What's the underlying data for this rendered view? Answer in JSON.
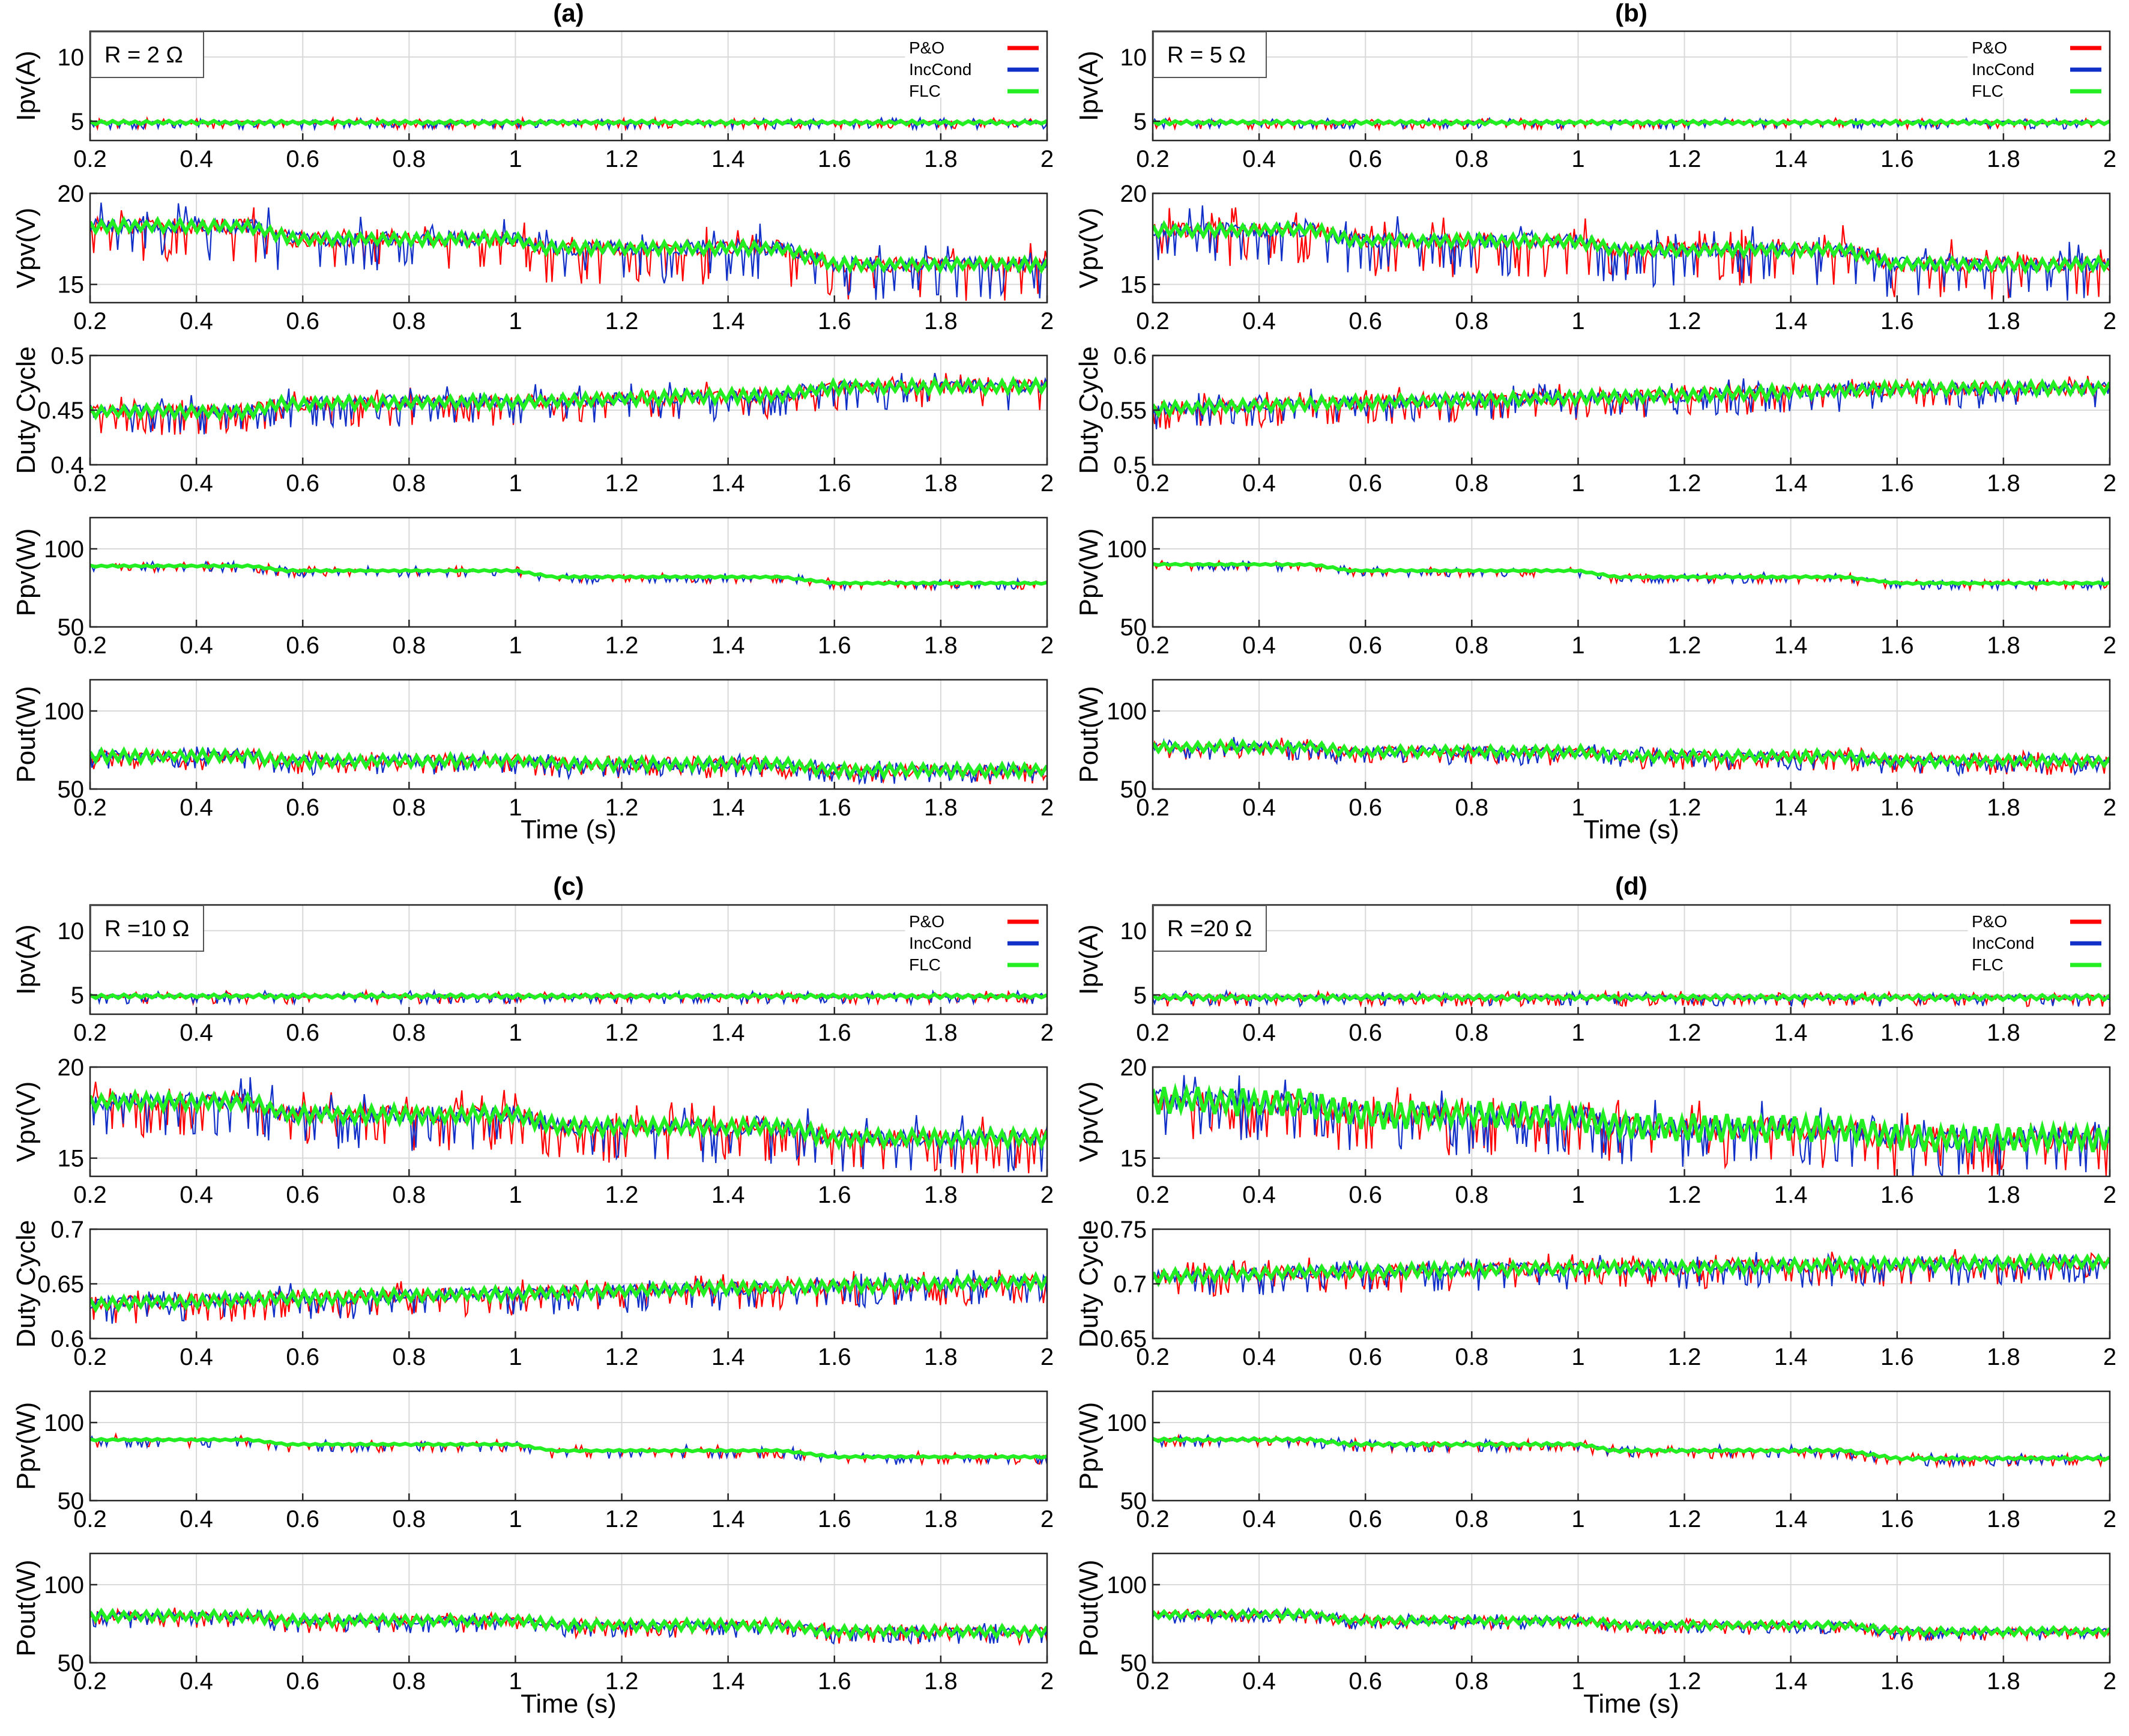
{
  "colors": {
    "po": "#ff0000",
    "inc": "#1030c8",
    "flc": "#22ee22",
    "grid": "#d9d9d9",
    "axis": "#262626"
  },
  "legend": [
    {
      "key": "po",
      "label": "P&O"
    },
    {
      "key": "inc",
      "label": "IncCond"
    },
    {
      "key": "flc",
      "label": "FLC"
    }
  ],
  "xlabel": "Time (s)",
  "chart_data": [
    {
      "type": "line",
      "panel": "(a)",
      "title": "(a)",
      "annotation": "R = 2 Ω",
      "x_ticks": [
        "0.2",
        "0.4",
        "0.6",
        "0.8",
        "1",
        "1.2",
        "1.4",
        "1.6",
        "1.8",
        "2"
      ],
      "xlim": [
        0.2,
        2
      ],
      "subplots": [
        {
          "ylabel": "Ipv(A)",
          "ylim": [
            3.5,
            12
          ],
          "yticks": [
            5,
            10
          ],
          "base": [
            [
              0.2,
              4.9
            ],
            [
              2,
              4.9
            ]
          ],
          "noise": 0.2,
          "spike": 0.5,
          "flc_band": 0.15
        },
        {
          "ylabel": "Vpv(V)",
          "ylim": [
            14,
            20
          ],
          "yticks": [
            15,
            20
          ],
          "base": [
            [
              0.2,
              18.2
            ],
            [
              0.5,
              18.2
            ],
            [
              0.58,
              17.5
            ],
            [
              1.0,
              17.5
            ],
            [
              1.05,
              17.0
            ],
            [
              1.5,
              17.0
            ],
            [
              1.6,
              16.1
            ],
            [
              2,
              16.1
            ]
          ],
          "noise": 0.8,
          "spike": 2.0,
          "flc_band": 0.35
        },
        {
          "ylabel": "Duty Cycle",
          "ylim": [
            0.4,
            0.5
          ],
          "yticks": [
            0.4,
            0.45,
            0.5
          ],
          "base": [
            [
              0.2,
              0.449
            ],
            [
              0.5,
              0.449
            ],
            [
              0.55,
              0.456
            ],
            [
              1.0,
              0.458
            ],
            [
              1.5,
              0.464
            ],
            [
              1.6,
              0.471
            ],
            [
              2,
              0.472
            ]
          ],
          "noise": 0.012,
          "spike": 0.022,
          "flc_band": 0.006
        },
        {
          "ylabel": "Ppv(W)",
          "ylim": [
            50,
            120
          ],
          "yticks": [
            50,
            100
          ],
          "base": [
            [
              0.2,
              89
            ],
            [
              0.5,
              89
            ],
            [
              0.57,
              86
            ],
            [
              1.0,
              86
            ],
            [
              1.07,
              82
            ],
            [
              1.5,
              82
            ],
            [
              1.6,
              78
            ],
            [
              2,
              78
            ]
          ],
          "noise": 1.0,
          "spike": 4.0,
          "flc_band": 0.6
        },
        {
          "ylabel": "Pout(W)",
          "ylim": [
            50,
            120
          ],
          "yticks": [
            50,
            100
          ],
          "base": [
            [
              0.2,
              71
            ],
            [
              0.5,
              71
            ],
            [
              0.57,
              68
            ],
            [
              1.0,
              68
            ],
            [
              1.1,
              66
            ],
            [
              1.5,
              66
            ],
            [
              1.6,
              62
            ],
            [
              2,
              62
            ]
          ],
          "noise": 7.0,
          "spike": 9.0,
          "flc_band": 4.0
        }
      ]
    },
    {
      "type": "line",
      "panel": "(b)",
      "title": "(b)",
      "annotation": "R = 5 Ω",
      "x_ticks": [
        "0.2",
        "0.4",
        "0.6",
        "0.8",
        "1",
        "1.2",
        "1.4",
        "1.6",
        "1.8",
        "2"
      ],
      "xlim": [
        0.2,
        2
      ],
      "subplots": [
        {
          "ylabel": "Ipv(A)",
          "ylim": [
            3.5,
            12
          ],
          "yticks": [
            5,
            10
          ],
          "base": [
            [
              0.2,
              4.9
            ],
            [
              2,
              4.9
            ]
          ],
          "noise": 0.2,
          "spike": 0.5,
          "flc_band": 0.15
        },
        {
          "ylabel": "Vpv(V)",
          "ylim": [
            14,
            20
          ],
          "yticks": [
            15,
            20
          ],
          "base": [
            [
              0.2,
              18.0
            ],
            [
              0.5,
              18.0
            ],
            [
              0.58,
              17.4
            ],
            [
              1.0,
              17.4
            ],
            [
              1.07,
              16.9
            ],
            [
              1.5,
              16.9
            ],
            [
              1.6,
              16.1
            ],
            [
              2,
              16.1
            ]
          ],
          "noise": 0.8,
          "spike": 2.0,
          "flc_band": 0.35
        },
        {
          "ylabel": "Duty Cycle",
          "ylim": [
            0.5,
            0.6
          ],
          "yticks": [
            0.5,
            0.55,
            0.6
          ],
          "base": [
            [
              0.2,
              0.551
            ],
            [
              0.5,
              0.556
            ],
            [
              1.0,
              0.561
            ],
            [
              1.5,
              0.568
            ],
            [
              1.6,
              0.57
            ],
            [
              2,
              0.57
            ]
          ],
          "noise": 0.012,
          "spike": 0.02,
          "flc_band": 0.006
        },
        {
          "ylabel": "Ppv(W)",
          "ylim": [
            50,
            120
          ],
          "yticks": [
            50,
            100
          ],
          "base": [
            [
              0.2,
              90
            ],
            [
              0.5,
              90
            ],
            [
              0.57,
              86
            ],
            [
              1.0,
              86
            ],
            [
              1.07,
              82
            ],
            [
              1.5,
              82
            ],
            [
              1.6,
              78
            ],
            [
              2,
              78
            ]
          ],
          "noise": 1.0,
          "spike": 4.0,
          "flc_band": 0.6
        },
        {
          "ylabel": "Pout(W)",
          "ylim": [
            50,
            120
          ],
          "yticks": [
            50,
            100
          ],
          "base": [
            [
              0.2,
              77
            ],
            [
              0.5,
              77
            ],
            [
              0.57,
              74
            ],
            [
              1.0,
              74
            ],
            [
              1.1,
              71
            ],
            [
              1.5,
              71
            ],
            [
              1.6,
              68
            ],
            [
              2,
              68
            ]
          ],
          "noise": 6.0,
          "spike": 9.0,
          "flc_band": 3.5
        }
      ]
    },
    {
      "type": "line",
      "panel": "(c)",
      "title": "(c)",
      "annotation": "R =10 Ω",
      "x_ticks": [
        "0.2",
        "0.4",
        "0.6",
        "0.8",
        "1",
        "1.2",
        "1.4",
        "1.6",
        "1.8",
        "2"
      ],
      "xlim": [
        0.2,
        2
      ],
      "subplots": [
        {
          "ylabel": "Ipv(A)",
          "ylim": [
            3.5,
            12
          ],
          "yticks": [
            5,
            10
          ],
          "base": [
            [
              0.2,
              4.9
            ],
            [
              2,
              4.9
            ]
          ],
          "noise": 0.2,
          "spike": 0.6,
          "flc_band": 0.15
        },
        {
          "ylabel": "Vpv(V)",
          "ylim": [
            14,
            20
          ],
          "yticks": [
            15,
            20
          ],
          "base": [
            [
              0.2,
              18.1
            ],
            [
              0.5,
              18.1
            ],
            [
              0.57,
              17.4
            ],
            [
              1.0,
              17.4
            ],
            [
              1.08,
              16.7
            ],
            [
              1.5,
              16.7
            ],
            [
              1.6,
              16.1
            ],
            [
              2,
              16.1
            ]
          ],
          "noise": 0.9,
          "spike": 2.0,
          "flc_band": 0.45
        },
        {
          "ylabel": "Duty Cycle",
          "ylim": [
            0.6,
            0.7
          ],
          "yticks": [
            0.6,
            0.65,
            0.7
          ],
          "base": [
            [
              0.2,
              0.632
            ],
            [
              0.5,
              0.636
            ],
            [
              1.0,
              0.641
            ],
            [
              1.5,
              0.647
            ],
            [
              2,
              0.652
            ]
          ],
          "noise": 0.012,
          "spike": 0.02,
          "flc_band": 0.006
        },
        {
          "ylabel": "Ppv(W)",
          "ylim": [
            50,
            120
          ],
          "yticks": [
            50,
            100
          ],
          "base": [
            [
              0.2,
              89
            ],
            [
              0.5,
              89
            ],
            [
              0.57,
              86
            ],
            [
              1.0,
              86
            ],
            [
              1.07,
              82
            ],
            [
              1.5,
              82
            ],
            [
              1.6,
              78
            ],
            [
              2,
              78
            ]
          ],
          "noise": 1.0,
          "spike": 5.0,
          "flc_band": 0.6
        },
        {
          "ylabel": "Pout(W)",
          "ylim": [
            50,
            120
          ],
          "yticks": [
            50,
            100
          ],
          "base": [
            [
              0.2,
              80
            ],
            [
              0.5,
              80
            ],
            [
              0.57,
              77
            ],
            [
              1.0,
              77
            ],
            [
              1.1,
              74
            ],
            [
              1.5,
              74
            ],
            [
              1.6,
              70
            ],
            [
              2,
              70
            ]
          ],
          "noise": 5.0,
          "spike": 8.0,
          "flc_band": 3.5
        }
      ]
    },
    {
      "type": "line",
      "panel": "(d)",
      "title": "(d)",
      "annotation": "R =20 Ω",
      "x_ticks": [
        "0.2",
        "0.4",
        "0.6",
        "0.8",
        "1",
        "1.2",
        "1.4",
        "1.6",
        "1.8",
        "2"
      ],
      "xlim": [
        0.2,
        2
      ],
      "subplots": [
        {
          "ylabel": "Ipv(A)",
          "ylim": [
            3.5,
            12
          ],
          "yticks": [
            5,
            10
          ],
          "base": [
            [
              0.2,
              4.8
            ],
            [
              2,
              4.8
            ]
          ],
          "noise": 0.3,
          "spike": 0.7,
          "flc_band": 0.2
        },
        {
          "ylabel": "Vpv(V)",
          "ylim": [
            14,
            20
          ],
          "yticks": [
            15,
            20
          ],
          "base": [
            [
              0.2,
              18.2
            ],
            [
              0.5,
              18.0
            ],
            [
              0.58,
              17.4
            ],
            [
              1.0,
              17.3
            ],
            [
              1.08,
              16.7
            ],
            [
              1.5,
              16.6
            ],
            [
              1.6,
              16.1
            ],
            [
              2,
              16.1
            ]
          ],
          "noise": 1.2,
          "spike": 2.2,
          "flc_band": 0.8
        },
        {
          "ylabel": "Duty Cycle",
          "ylim": [
            0.65,
            0.75
          ],
          "yticks": [
            0.65,
            0.7,
            0.75
          ],
          "base": [
            [
              0.2,
              0.706
            ],
            [
              0.5,
              0.711
            ],
            [
              1.0,
              0.714
            ],
            [
              1.5,
              0.717
            ],
            [
              2,
              0.72
            ]
          ],
          "noise": 0.012,
          "spike": 0.02,
          "flc_band": 0.006
        },
        {
          "ylabel": "Ppv(W)",
          "ylim": [
            50,
            120
          ],
          "yticks": [
            50,
            100
          ],
          "base": [
            [
              0.2,
              89
            ],
            [
              0.5,
              89
            ],
            [
              0.57,
              86
            ],
            [
              1.0,
              86
            ],
            [
              1.07,
              82
            ],
            [
              1.5,
              82
            ],
            [
              1.6,
              77
            ],
            [
              2,
              77
            ]
          ],
          "noise": 1.5,
          "spike": 5.0,
          "flc_band": 1.0
        },
        {
          "ylabel": "Pout(W)",
          "ylim": [
            50,
            120
          ],
          "yticks": [
            50,
            100
          ],
          "base": [
            [
              0.2,
              81
            ],
            [
              0.5,
              81
            ],
            [
              0.57,
              77
            ],
            [
              1.0,
              77
            ],
            [
              1.1,
              74
            ],
            [
              1.5,
              74
            ],
            [
              1.6,
              70
            ],
            [
              2,
              70
            ]
          ],
          "noise": 4.0,
          "spike": 6.0,
          "flc_band": 2.5
        }
      ]
    }
  ]
}
